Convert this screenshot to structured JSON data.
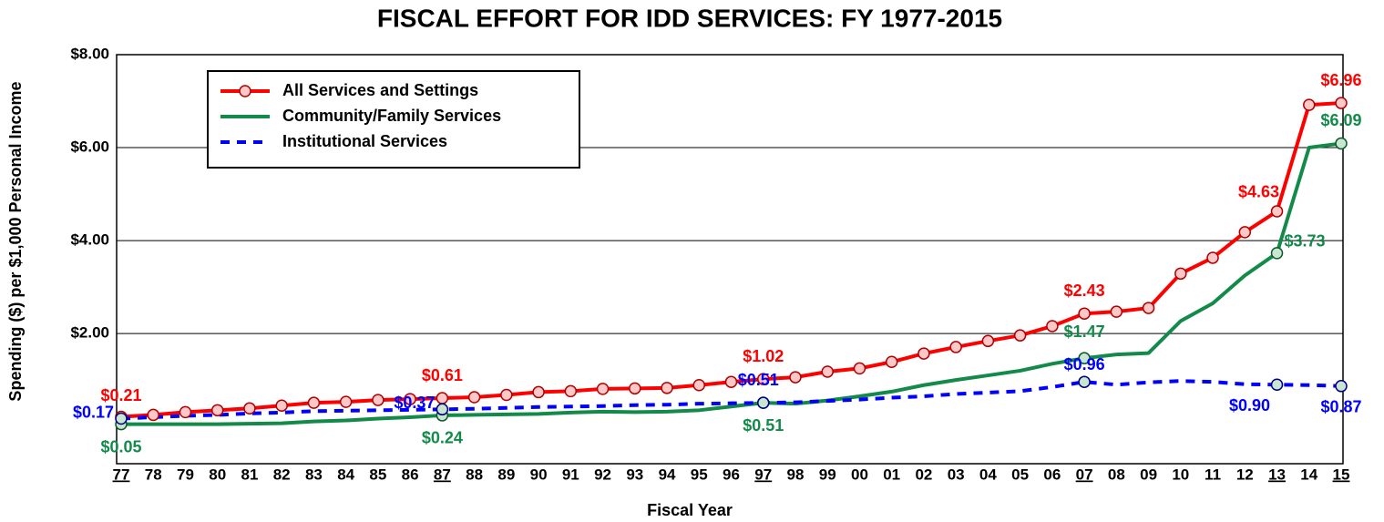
{
  "chart_data": {
    "type": "line",
    "title": "FISCAL EFFORT FOR IDD SERVICES: FY 1977-2015",
    "y_label": "Spending ($) per $1,000 Personal Income",
    "x_label": "Fiscal Year",
    "categories": [
      "77",
      "78",
      "79",
      "80",
      "81",
      "82",
      "83",
      "84",
      "85",
      "86",
      "87",
      "88",
      "89",
      "90",
      "91",
      "92",
      "93",
      "94",
      "95",
      "96",
      "97",
      "98",
      "99",
      "00",
      "01",
      "02",
      "03",
      "04",
      "05",
      "06",
      "07",
      "08",
      "09",
      "10",
      "11",
      "12",
      "13",
      "14",
      "15"
    ],
    "ylim": [
      -0.8,
      8
    ],
    "yticks": [
      {
        "value": 2,
        "label": "$2.00"
      },
      {
        "value": 4,
        "label": "$4.00"
      },
      {
        "value": 6,
        "label": "$6.00"
      },
      {
        "value": 8,
        "label": "$8.00"
      }
    ],
    "grid": true,
    "legend": "upper left",
    "series": [
      {
        "name": "All Services and Settings",
        "color": "#ff0000",
        "dash": false,
        "values": [
          0.21,
          0.25,
          0.31,
          0.35,
          0.39,
          0.45,
          0.51,
          0.53,
          0.57,
          0.59,
          0.61,
          0.63,
          0.68,
          0.74,
          0.76,
          0.81,
          0.82,
          0.83,
          0.89,
          0.96,
          1.02,
          1.06,
          1.18,
          1.25,
          1.39,
          1.57,
          1.71,
          1.84,
          1.96,
          2.16,
          2.43,
          2.47,
          2.55,
          3.29,
          3.63,
          4.18,
          4.63,
          6.92,
          6.96
        ],
        "value_labels": [
          "$0.21",
          null,
          null,
          null,
          null,
          null,
          null,
          null,
          null,
          null,
          "$0.61",
          null,
          null,
          null,
          null,
          null,
          null,
          null,
          null,
          null,
          "$1.02",
          null,
          null,
          null,
          null,
          null,
          null,
          null,
          null,
          null,
          "$2.43",
          null,
          null,
          null,
          null,
          null,
          "$4.63",
          null,
          "$6.96"
        ]
      },
      {
        "name": "Community/Family Services",
        "color": "#138a49",
        "dash": false,
        "values": [
          0.05,
          0.05,
          0.05,
          0.05,
          0.06,
          0.07,
          0.11,
          0.13,
          0.17,
          0.2,
          0.24,
          0.25,
          0.26,
          0.27,
          0.3,
          0.32,
          0.31,
          0.32,
          0.35,
          0.43,
          0.51,
          0.49,
          0.56,
          0.65,
          0.75,
          0.89,
          1.0,
          1.1,
          1.2,
          1.35,
          1.47,
          1.55,
          1.58,
          2.27,
          2.65,
          3.25,
          3.73,
          6.0,
          6.09
        ],
        "value_labels": [
          "$0.05",
          null,
          null,
          null,
          null,
          null,
          null,
          null,
          null,
          null,
          "$0.24",
          null,
          null,
          null,
          null,
          null,
          null,
          null,
          null,
          null,
          "$0.51",
          null,
          null,
          null,
          null,
          null,
          null,
          null,
          null,
          null,
          "$1.47",
          null,
          null,
          null,
          null,
          null,
          "$3.73",
          null,
          "$6.09"
        ]
      },
      {
        "name": "Institutional Services",
        "color": "#0000ff",
        "dash": true,
        "values": [
          0.17,
          0.2,
          0.23,
          0.25,
          0.28,
          0.3,
          0.33,
          0.34,
          0.35,
          0.36,
          0.37,
          0.38,
          0.4,
          0.42,
          0.43,
          0.44,
          0.46,
          0.47,
          0.49,
          0.5,
          0.51,
          0.52,
          0.55,
          0.58,
          0.62,
          0.65,
          0.7,
          0.73,
          0.76,
          0.85,
          0.96,
          0.9,
          0.95,
          0.98,
          0.96,
          0.91,
          0.9,
          0.89,
          0.87
        ],
        "value_labels": [
          "$0.17",
          null,
          null,
          null,
          null,
          null,
          null,
          null,
          null,
          null,
          "$0.37",
          null,
          null,
          null,
          null,
          null,
          null,
          null,
          null,
          null,
          "$0.51",
          null,
          null,
          null,
          null,
          null,
          null,
          null,
          null,
          null,
          "$0.96",
          null,
          null,
          null,
          null,
          null,
          "$0.90",
          null,
          "$0.87"
        ]
      }
    ]
  }
}
